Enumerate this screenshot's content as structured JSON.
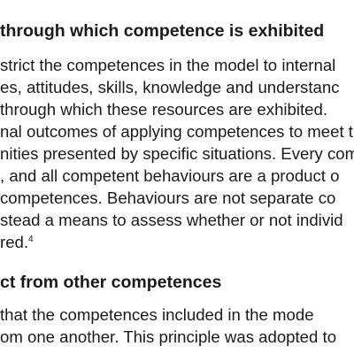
{
  "section_1": {
    "heading": "through which competence is exhibited",
    "paragraph_lines": [
      "strict the competences in the model to internal",
      "es, attitudes, skills, knowledge and understanc",
      "through which these resources are exhibited.",
      "nal outcomes of applying competences to meet th",
      "nities presented by specific situations. Every com",
      ", and all competent behaviours are a product o",
      " competences. Behaviours are not separate co",
      "stead a means to assess whether or not individ"
    ],
    "last_line_text": "red.",
    "footnote_ref": "4"
  },
  "section_2": {
    "heading": "ct from other competences",
    "paragraph_lines": [
      " that the competences included in the mode",
      "om one another. This principle was adopted to"
    ]
  }
}
